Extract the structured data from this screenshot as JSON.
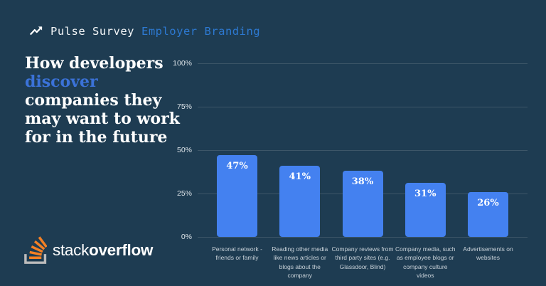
{
  "header": {
    "icon": "trending-up-icon",
    "series_label": "Pulse Survey",
    "topic_label": "Employer Branding"
  },
  "title": {
    "lines": [
      "How developers",
      "discover",
      "companies they",
      "may want to work",
      "for in the future"
    ],
    "highlight_word": "discover"
  },
  "chart_data": {
    "type": "bar",
    "title": "How developers discover companies they may want to work for in the future",
    "categories": [
      "Personal network - friends or family",
      "Reading other media like news articles or blogs about the company",
      "Company reviews from third party sites (e.g. Glassdoor, Blind)",
      "Company media, such as employee blogs or company culture videos",
      "Advertisements on websites"
    ],
    "values": [
      47,
      41,
      38,
      31,
      26
    ],
    "value_labels": [
      "47%",
      "41%",
      "38%",
      "31%",
      "26%"
    ],
    "unit": "%",
    "ylim": [
      0,
      100
    ],
    "yticks": [
      {
        "value": 0,
        "label": "0%"
      },
      {
        "value": 25,
        "label": "25%"
      },
      {
        "value": 50,
        "label": "50%"
      },
      {
        "value": 75,
        "label": "75%"
      },
      {
        "value": 100,
        "label": "100%"
      }
    ],
    "grid": true,
    "legend": false,
    "bar_color": "#4481f0",
    "value_label_color": "#ffffff"
  },
  "logo": {
    "icon": "stackoverflow-logo-icon",
    "brand_light": "stack",
    "brand_bold": "overflow"
  },
  "colors": {
    "background": "#1e3c52",
    "bar": "#4481f0",
    "title_accent": "#3b72d8",
    "header_accent": "#2d79d1",
    "gridline": "#3d5668",
    "tick_label": "#dde4e9",
    "category_label": "#c9d2d9",
    "logo_orange": "#f48024",
    "logo_gray": "#bcbbbb"
  }
}
